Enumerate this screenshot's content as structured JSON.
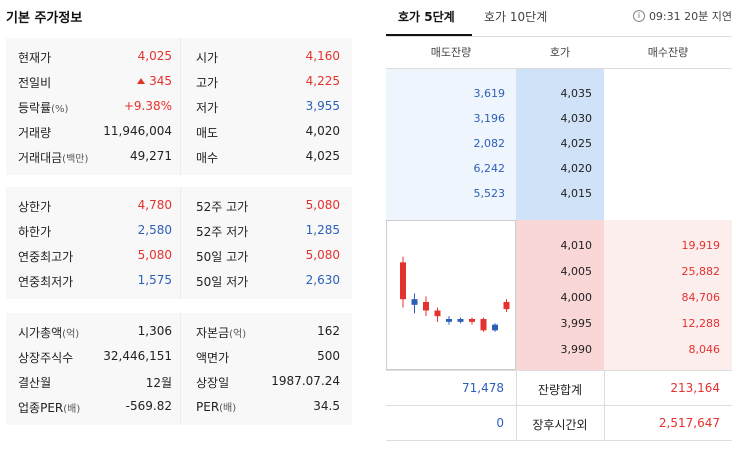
{
  "left": {
    "title": "기본 주가정보",
    "groups": [
      [
        {
          "l1": "현재가",
          "u1": "",
          "v1": "4,025",
          "c1": "red",
          "l2": "시가",
          "u2": "",
          "v2": "4,160",
          "c2": "red"
        },
        {
          "l1": "전일비",
          "u1": "",
          "v1": "345",
          "c1": "red",
          "l2": "고가",
          "u2": "",
          "v2": "4,225",
          "c2": "red",
          "up": true
        },
        {
          "l1": "등락률",
          "u1": "(%)",
          "v1": "+9.38%",
          "c1": "red",
          "l2": "저가",
          "u2": "",
          "v2": "3,955",
          "c2": "blue"
        },
        {
          "l1": "거래량",
          "u1": "",
          "v1": "11,946,004",
          "c1": "dark",
          "l2": "매도",
          "u2": "",
          "v2": "4,020",
          "c2": "dark"
        },
        {
          "l1": "거래대금",
          "u1": "(백만)",
          "v1": "49,271",
          "c1": "dark",
          "l2": "매수",
          "u2": "",
          "v2": "4,025",
          "c2": "dark"
        }
      ],
      [
        {
          "l1": "상한가",
          "u1": "",
          "v1": "4,780",
          "c1": "red",
          "l2": "52주 고가",
          "u2": "",
          "v2": "5,080",
          "c2": "red"
        },
        {
          "l1": "하한가",
          "u1": "",
          "v1": "2,580",
          "c1": "blue",
          "l2": "52주 저가",
          "u2": "",
          "v2": "1,285",
          "c2": "blue"
        },
        {
          "l1": "연중최고가",
          "u1": "",
          "v1": "5,080",
          "c1": "red",
          "l2": "50일 고가",
          "u2": "",
          "v2": "5,080",
          "c2": "red"
        },
        {
          "l1": "연중최저가",
          "u1": "",
          "v1": "1,575",
          "c1": "blue",
          "l2": "50일 저가",
          "u2": "",
          "v2": "2,630",
          "c2": "blue"
        }
      ],
      [
        {
          "l1": "시가총액",
          "u1": "(억)",
          "v1": "1,306",
          "c1": "dark",
          "l2": "자본금",
          "u2": "(억)",
          "v2": "162",
          "c2": "dark"
        },
        {
          "l1": "상장주식수",
          "u1": "",
          "v1": "32,446,151",
          "c1": "dark",
          "l2": "액면가",
          "u2": "",
          "v2": "500",
          "c2": "dark"
        },
        {
          "l1": "결산월",
          "u1": "",
          "v1": "12월",
          "c1": "dark",
          "l2": "상장일",
          "u2": "",
          "v2": "1987.07.24",
          "c2": "dark"
        },
        {
          "l1": "업종PER",
          "u1": "(배)",
          "v1": "-569.82",
          "c1": "dark",
          "l2": "PER",
          "u2": "(배)",
          "v2": "34.5",
          "c2": "dark"
        }
      ]
    ]
  },
  "right": {
    "tabs": [
      "호가 5단계",
      "호가 10단계"
    ],
    "status": "09:31 20분 지연",
    "headers": [
      "매도잔량",
      "호가",
      "매수잔량"
    ],
    "asks": [
      {
        "qty": "3,619",
        "price": "4,035"
      },
      {
        "qty": "3,196",
        "price": "4,030"
      },
      {
        "qty": "2,082",
        "price": "4,025"
      },
      {
        "qty": "6,242",
        "price": "4,020"
      },
      {
        "qty": "5,523",
        "price": "4,015"
      }
    ],
    "bids": [
      {
        "price": "4,010",
        "qty": "19,919"
      },
      {
        "price": "4,005",
        "qty": "25,882"
      },
      {
        "price": "4,000",
        "qty": "84,706"
      },
      {
        "price": "3,995",
        "qty": "12,288"
      },
      {
        "price": "3,990",
        "qty": "8,046"
      }
    ],
    "summary": [
      {
        "left": "71,478",
        "label": "잔량합계",
        "right": "213,164"
      },
      {
        "left": "0",
        "label": "장후시간외",
        "right": "2,517,647"
      }
    ]
  },
  "candles": [
    {
      "dir": "up",
      "open": 4030,
      "close": 4160,
      "high": 4180,
      "low": 4000
    },
    {
      "dir": "down",
      "open": 4030,
      "close": 4010,
      "high": 4050,
      "low": 3980
    },
    {
      "dir": "up",
      "open": 3990,
      "close": 4020,
      "high": 4040,
      "low": 3970
    },
    {
      "dir": "up",
      "open": 3970,
      "close": 3990,
      "high": 4000,
      "low": 3950
    },
    {
      "dir": "down",
      "open": 3960,
      "close": 3950,
      "high": 3970,
      "low": 3940
    },
    {
      "dir": "down",
      "open": 3960,
      "close": 3950,
      "high": 3965,
      "low": 3945
    },
    {
      "dir": "up",
      "open": 3950,
      "close": 3960,
      "high": 3965,
      "low": 3940
    },
    {
      "dir": "up",
      "open": 3920,
      "close": 3960,
      "high": 3965,
      "low": 3915
    },
    {
      "dir": "down",
      "open": 3940,
      "close": 3920,
      "high": 3945,
      "low": 3915
    },
    {
      "dir": "up",
      "open": 3995,
      "close": 4020,
      "high": 4030,
      "low": 3985
    }
  ],
  "colors": {
    "up": "#e4322f",
    "down": "#2d5fb8"
  },
  "icons": {
    "status": "info-icon"
  }
}
